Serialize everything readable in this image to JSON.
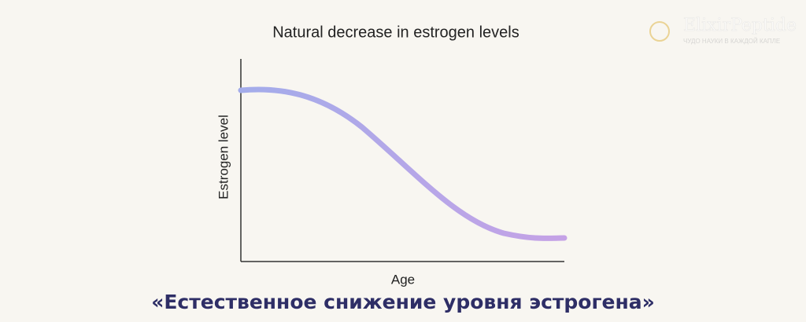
{
  "header": {
    "brand": "ElixirPeptide",
    "tagline": "ЧУДО НАУКИ В КАЖДОЙ КАПЛЕ"
  },
  "figure": {
    "title": "Natural decrease in estrogen levels",
    "y_label": "Estrogen level",
    "x_label": "Age"
  },
  "caption": "«Естественное снижение уровня эстрогена»"
}
